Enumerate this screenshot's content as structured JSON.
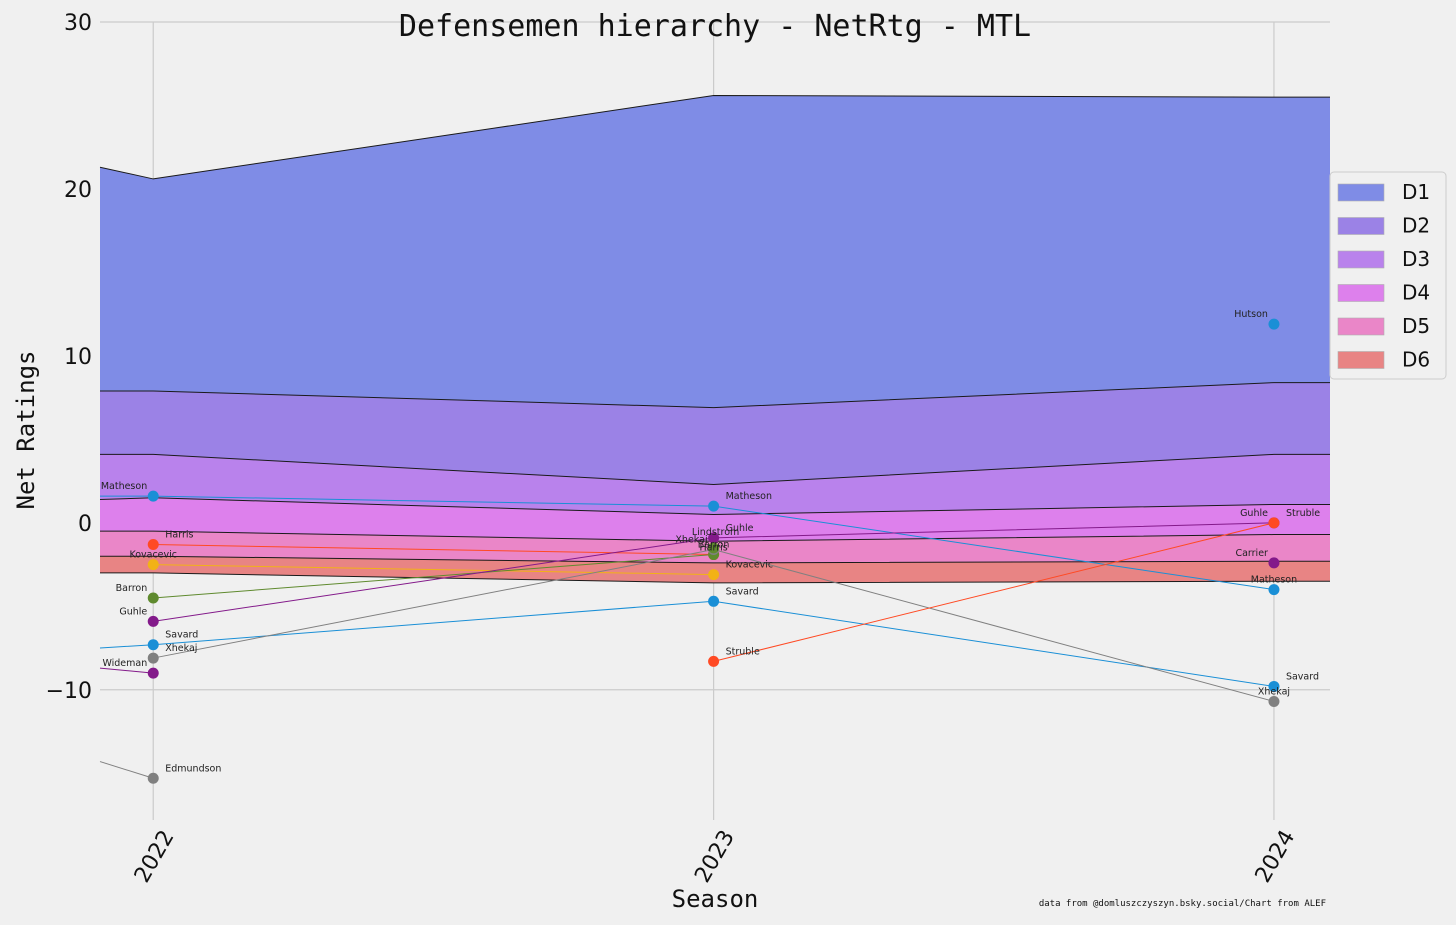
{
  "chart_data": {
    "type": "area",
    "title": "Defensemen hierarchy - NetRtg - MTL",
    "xlabel": "Season",
    "ylabel": "Net Ratings",
    "credit": "data from  @domluszczyszyn.bsky.social/Chart from ALEF",
    "xlim": [
      2021.905,
      2024.1
    ],
    "ylim": [
      -17.8,
      30
    ],
    "yticks": [
      -10,
      0,
      10,
      20,
      30
    ],
    "ytick_labels": [
      "−10",
      "0",
      "10",
      "20",
      "30"
    ],
    "xticks": [
      2022,
      2023,
      2024
    ],
    "xtick_labels": [
      "2022",
      "2023",
      "2024"
    ],
    "grid": true,
    "legend_position": "right",
    "tiers": [
      {
        "name": "D1",
        "color": "#7f8ce6",
        "x": [
          2021.905,
          2022,
          2023,
          2024,
          2024.1
        ],
        "values": [
          21.3,
          20.6,
          25.6,
          25.5,
          25.5
        ]
      },
      {
        "name": "D2",
        "color": "#9b82e6",
        "x": [
          2021.905,
          2022,
          2023,
          2024,
          2024.1
        ],
        "values": [
          7.9,
          7.9,
          6.9,
          8.4,
          8.4
        ]
      },
      {
        "name": "D3",
        "color": "#b982ec",
        "x": [
          2021.905,
          2022,
          2023,
          2024,
          2024.1
        ],
        "values": [
          4.1,
          4.1,
          2.3,
          4.1,
          4.1
        ]
      },
      {
        "name": "D4",
        "color": "#dd80ec",
        "x": [
          2021.905,
          2022,
          2023,
          2024,
          2024.1
        ],
        "values": [
          1.4,
          1.5,
          0.5,
          1.1,
          1.1
        ]
      },
      {
        "name": "D5",
        "color": "#ea86c8",
        "x": [
          2021.905,
          2022,
          2023,
          2024,
          2024.1
        ],
        "values": [
          -0.5,
          -0.5,
          -1.1,
          -0.7,
          -0.7
        ]
      },
      {
        "name": "D6",
        "color": "#e88484",
        "x": [
          2021.905,
          2022,
          2023,
          2024,
          2024.1
        ],
        "values": [
          -2.0,
          -2.0,
          -2.4,
          -2.3,
          -2.3
        ]
      }
    ],
    "area_floor": [
      -3.0,
      -3.0,
      -3.6,
      -3.5,
      -3.5
    ],
    "players": [
      {
        "name": "Matheson",
        "color": "#1a8fd6",
        "points": [
          [
            2021.905,
            1.6
          ],
          [
            2022,
            1.6
          ],
          [
            2023,
            1.0
          ],
          [
            2024,
            -4.0
          ]
        ],
        "labels": [
          {
            "x": 2022,
            "text": "Matheson",
            "pos": "above-left"
          },
          {
            "x": 2023,
            "text": "Matheson",
            "pos": "above-right"
          },
          {
            "x": 2024,
            "text": "Matheson",
            "pos": "above-center"
          }
        ]
      },
      {
        "name": "Harris",
        "color": "#ff4a24",
        "points": [
          [
            2022,
            -1.3
          ],
          [
            2023,
            -1.9
          ]
        ],
        "labels": [
          {
            "x": 2022,
            "text": "Harris",
            "pos": "above-right"
          },
          {
            "x": 2023,
            "text": "Harris",
            "pos": "above-center-dup"
          }
        ]
      },
      {
        "name": "Kovacevic",
        "color": "#f2b216",
        "points": [
          [
            2022,
            -2.5
          ],
          [
            2023,
            -3.1
          ]
        ],
        "labels": [
          {
            "x": 2022,
            "text": "Kovacevic",
            "pos": "above-center"
          },
          {
            "x": 2023,
            "text": "Kovacevic",
            "pos": "above-right"
          }
        ]
      },
      {
        "name": "Barron",
        "color": "#5f8a2e",
        "points": [
          [
            2022,
            -4.5
          ],
          [
            2023,
            -1.9
          ]
        ],
        "labels": [
          {
            "x": 2022,
            "text": "Barron",
            "pos": "above-left"
          },
          {
            "x": 2023,
            "text": "Barron",
            "pos": "above-center"
          }
        ]
      },
      {
        "name": "Guhle",
        "color": "#831a8a",
        "points": [
          [
            2022,
            -5.9
          ],
          [
            2023,
            -0.9
          ],
          [
            2024,
            0.0
          ]
        ],
        "labels": [
          {
            "x": 2022,
            "text": "Guhle",
            "pos": "above-left"
          },
          {
            "x": 2023,
            "text": "Guhle",
            "pos": "above-right"
          },
          {
            "x": 2024,
            "text": "Guhle",
            "pos": "above-left"
          }
        ]
      },
      {
        "name": "Savard",
        "color": "#1a8fd6",
        "points": [
          [
            2021.905,
            -7.5
          ],
          [
            2022,
            -7.3
          ],
          [
            2023,
            -4.7
          ],
          [
            2024,
            -9.8
          ]
        ],
        "labels": [
          {
            "x": 2022,
            "text": "Savard",
            "pos": "above-right"
          },
          {
            "x": 2023,
            "text": "Savard",
            "pos": "above-right"
          },
          {
            "x": 2024,
            "text": "Savard",
            "pos": "above-right"
          }
        ]
      },
      {
        "name": "Xhekaj",
        "color": "#808080",
        "points": [
          [
            2022,
            -8.1
          ],
          [
            2023,
            -1.6
          ],
          [
            2024,
            -10.7
          ]
        ],
        "labels": [
          {
            "x": 2022,
            "text": "Xhekaj",
            "pos": "above-right"
          },
          {
            "x": 2023,
            "text": "Xhekaj",
            "pos": "above-left"
          },
          {
            "x": 2024,
            "text": "Xhekaj",
            "pos": "above-center"
          }
        ]
      },
      {
        "name": "Wideman",
        "color": "#831a8a",
        "points": [
          [
            2021.905,
            -8.7
          ],
          [
            2022,
            -9.0
          ]
        ],
        "labels": [
          {
            "x": 2022,
            "text": "Wideman",
            "pos": "above-left"
          }
        ]
      },
      {
        "name": "Edmundson",
        "color": "#808080",
        "points": [
          [
            2021.905,
            -14.3
          ],
          [
            2022,
            -15.3
          ]
        ],
        "labels": [
          {
            "x": 2022,
            "text": "Edmundson",
            "pos": "above-right"
          }
        ]
      },
      {
        "name": "Lindstrom",
        "color": "#5f8a2e",
        "points": [
          [
            2023,
            -1.5
          ]
        ],
        "labels": [
          {
            "x": 2023,
            "text": "Lindstrom",
            "pos": "above-center-high"
          }
        ]
      },
      {
        "name": "Struble",
        "color": "#ff4a24",
        "points": [
          [
            2023,
            -8.3
          ],
          [
            2024,
            0.0
          ]
        ],
        "labels": [
          {
            "x": 2023,
            "text": "Struble",
            "pos": "above-right"
          },
          {
            "x": 2024,
            "text": "Struble",
            "pos": "above-right"
          }
        ]
      },
      {
        "name": "Hutson",
        "color": "#1a8fd6",
        "points": [
          [
            2024,
            11.9
          ]
        ],
        "labels": [
          {
            "x": 2024,
            "text": "Hutson",
            "pos": "above-left"
          }
        ]
      },
      {
        "name": "Carrier",
        "color": "#831a8a",
        "points": [
          [
            2024,
            -2.4
          ]
        ],
        "labels": [
          {
            "x": 2024,
            "text": "Carrier",
            "pos": "above-left"
          }
        ]
      }
    ]
  }
}
